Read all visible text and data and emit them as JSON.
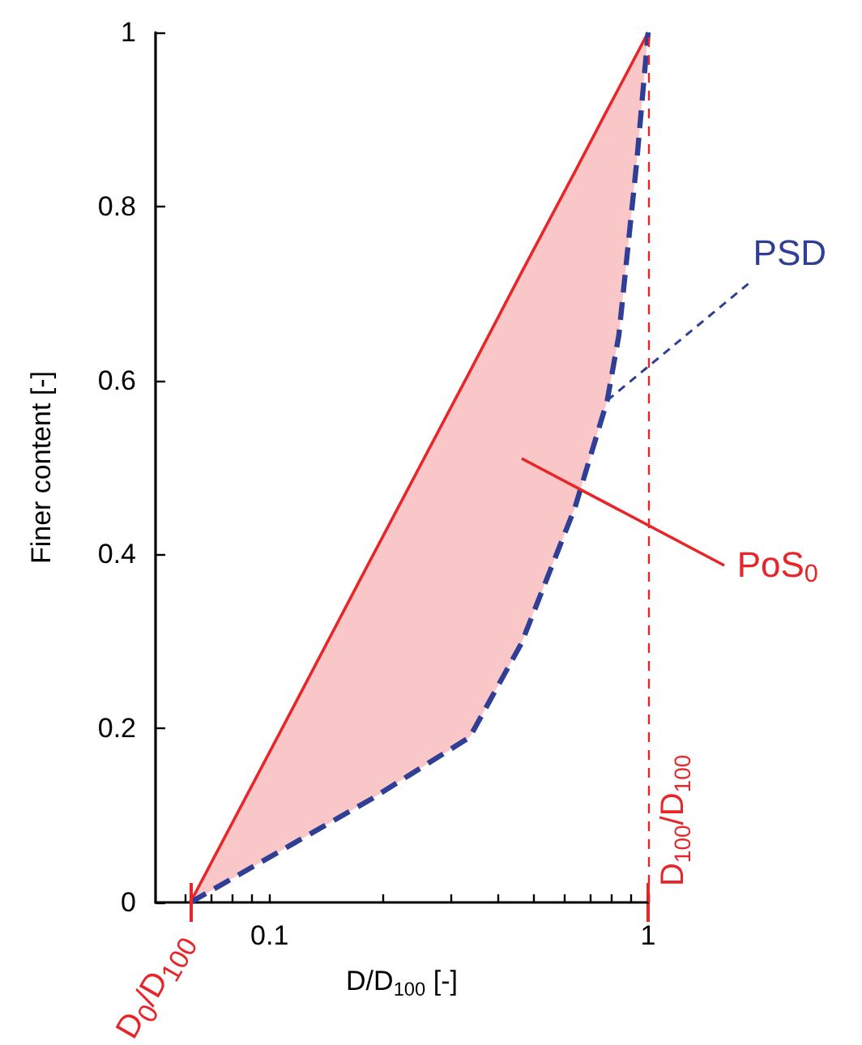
{
  "chart_data": {
    "type": "line",
    "xlabel": "D/D$_{100}$ [-]",
    "ylabel": "Finer content [-]",
    "log": "x",
    "xlim": [
      0.05,
      1
    ],
    "ylim": [
      0,
      1
    ],
    "xticks": [
      {
        "value": 0.06,
        "label": null
      },
      {
        "value": 0.07,
        "label": null
      },
      {
        "value": 0.08,
        "label": null
      },
      {
        "value": 0.09,
        "label": null
      },
      0.1,
      {
        "value": 0.2,
        "label": null
      },
      {
        "value": 0.3,
        "label": null
      },
      {
        "value": 0.4,
        "label": null
      },
      {
        "value": 0.5,
        "label": null
      },
      {
        "value": 0.6,
        "label": null
      },
      {
        "value": 0.7,
        "label": null
      },
      {
        "value": 0.8,
        "label": null
      },
      {
        "value": 0.9,
        "label": null
      },
      1
    ],
    "yticks": [
      0,
      0.2,
      0.4,
      0.6,
      0.8,
      1
    ],
    "grid": false,
    "legend": false,
    "marker": "none",
    "series": [
      {
        "color": "#e8262a",
        "line_style": "solid",
        "x": [
          0.0618,
          0.117,
          0.186,
          0.338,
          0.463,
          0.641,
          0.78,
          0.837,
          0.933,
          1
        ],
        "values": [
          0,
          0.229,
          0.396,
          0.61,
          0.724,
          0.84,
          0.911,
          0.936,
          0.975,
          1
        ],
        "lower": [
          0,
          0.069,
          0.119,
          0.19,
          0.298,
          0.454,
          0.577,
          0.652,
          0.851,
          1
        ],
        "upper": [
          0,
          0.229,
          0.396,
          0.61,
          0.724,
          0.84,
          0.911,
          0.936,
          0.975,
          1
        ]
      },
      {
        "name": "PSD",
        "color": "#2e3f95",
        "line_style": "dashed",
        "x": [
          0.0618,
          0.117,
          0.186,
          0.338,
          0.463,
          0.641,
          0.78,
          0.837,
          0.933,
          1
        ],
        "values": [
          0,
          0.069,
          0.119,
          0.19,
          0.298,
          0.454,
          0.577,
          0.652,
          0.851,
          1
        ]
      }
    ],
    "ref_lines": [
      {
        "axis": "x",
        "value": 1,
        "label": "D$_{100}$/D$_{100}$",
        "color": "#e8262a",
        "line_style": "dashed"
      }
    ],
    "annotations": [
      {
        "text": "D$_{0}$/D$_{100}$",
        "x": 0.0618,
        "y": 0
      },
      "PoS$_{0}$"
    ]
  }
}
